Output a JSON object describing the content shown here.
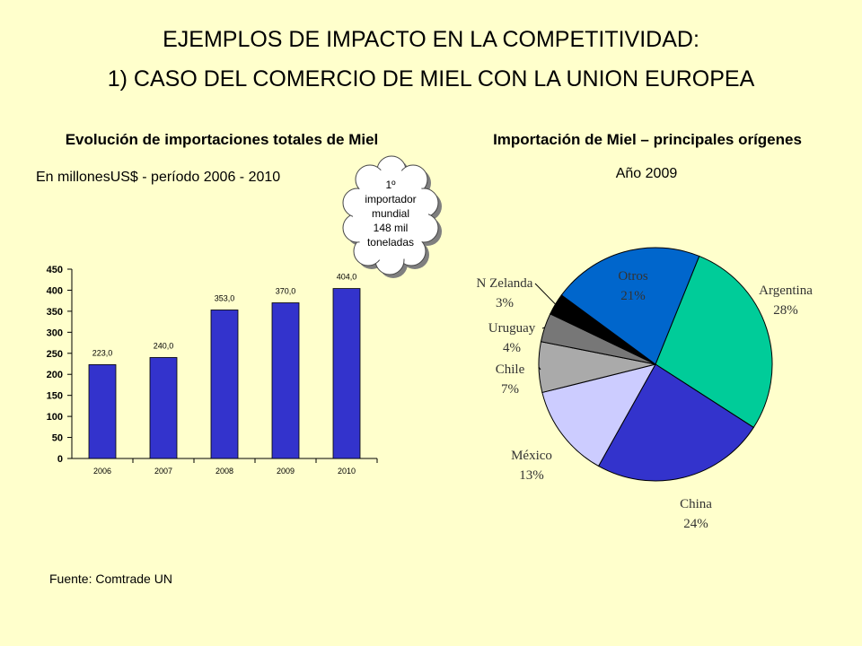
{
  "header": {
    "title_line1": "EJEMPLOS DE IMPACTO EN LA COMPETITIVIDAD:",
    "title_line2": "1) CASO DEL COMERCIO DE MIEL CON LA UNION EUROPEA"
  },
  "callout": {
    "lines": [
      "1º",
      "importador",
      "mundial",
      "148 mil",
      "toneladas"
    ]
  },
  "source": "Fuente: Comtrade UN",
  "chart_data": [
    {
      "type": "bar",
      "title": "Evolución de importaciones totales de Miel",
      "subtitle": "En  millonesUS$ - período 2006 - 2010",
      "categories": [
        "2006",
        "2007",
        "2008",
        "2009",
        "2010"
      ],
      "values": [
        223.0,
        240.0,
        353.0,
        370.0,
        404.0
      ],
      "data_labels": [
        "223,0",
        "240,0",
        "353,0",
        "370,0",
        "404,0"
      ],
      "ylim": [
        0,
        450
      ],
      "yticks": [
        0,
        50,
        100,
        150,
        200,
        250,
        300,
        350,
        400,
        450
      ],
      "bar_color": "#3333cc",
      "grid": false,
      "xlabel": "",
      "ylabel": ""
    },
    {
      "type": "pie",
      "title": "Importación de Miel – principales orígenes",
      "subtitle": "Año 2009",
      "slices": [
        {
          "label": "Argentina",
          "percent_label": "28%",
          "value": 28,
          "color": "#00cc99"
        },
        {
          "label": "China",
          "percent_label": "24%",
          "value": 24,
          "color": "#3333cc"
        },
        {
          "label": "México",
          "percent_label": "13%",
          "value": 13,
          "color": "#ccccff"
        },
        {
          "label": "Chile",
          "percent_label": "7%",
          "value": 7,
          "color": "#aaaaaa"
        },
        {
          "label": "Uruguay",
          "percent_label": "4%",
          "value": 4,
          "color": "#777777"
        },
        {
          "label": "N Zelanda",
          "percent_label": "3%",
          "value": 3,
          "color": "#000000"
        },
        {
          "label": "Otros",
          "percent_label": "21%",
          "value": 21,
          "color": "#0066cc"
        }
      ]
    }
  ]
}
